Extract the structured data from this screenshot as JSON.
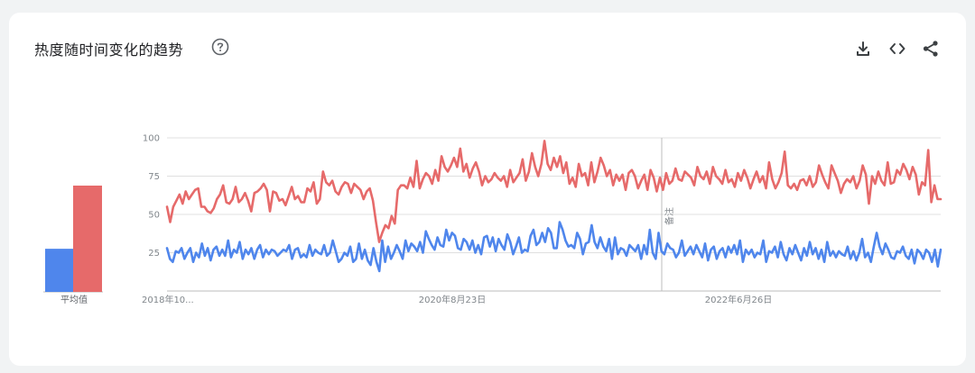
{
  "header": {
    "title": "热度随时间变化的趋势",
    "help_icon": "help-circle-icon",
    "actions": [
      {
        "name": "download-icon",
        "label": "download"
      },
      {
        "name": "embed-code-icon",
        "label": "embed"
      },
      {
        "name": "share-icon",
        "label": "share"
      }
    ]
  },
  "colors": {
    "series_blue": "#4f86ec",
    "series_red": "#e66a6a",
    "grid": "#e0e0e0",
    "axis": "#bdbdbd"
  },
  "chart_data": {
    "type": "line",
    "title": "",
    "xlabel": "",
    "ylabel": "",
    "ylim": [
      0,
      100
    ],
    "y_ticks": [
      25,
      50,
      75,
      100
    ],
    "x_tick_labels": [
      "2018年10...",
      "2020年8月23日",
      "2022年6月26日"
    ],
    "annotation_label": "备注",
    "average_label": "平均值",
    "averages": {
      "blue": 28,
      "red": 69
    },
    "x_range": [
      "2018-10",
      "2024-10"
    ],
    "series": [
      {
        "color": "#4f86ec",
        "values": [
          28,
          21,
          19,
          26,
          25,
          28,
          21,
          25,
          28,
          19,
          25,
          22,
          31,
          23,
          28,
          20,
          27,
          29,
          23,
          27,
          23,
          33,
          22,
          27,
          25,
          32,
          21,
          27,
          24,
          28,
          21,
          27,
          30,
          22,
          27,
          24,
          27,
          26,
          23,
          25,
          27,
          26,
          30,
          21,
          27,
          28,
          22,
          24,
          22,
          30,
          23,
          27,
          25,
          24,
          30,
          23,
          25,
          33,
          26,
          19,
          21,
          25,
          23,
          29,
          19,
          21,
          31,
          21,
          27,
          20,
          17,
          28,
          19,
          13,
          33,
          19,
          29,
          21,
          25,
          30,
          26,
          21,
          33,
          26,
          31,
          29,
          26,
          32,
          25,
          39,
          34,
          30,
          27,
          35,
          30,
          29,
          40,
          33,
          38,
          36,
          28,
          27,
          34,
          32,
          27,
          33,
          25,
          30,
          24,
          35,
          36,
          29,
          35,
          26,
          34,
          30,
          27,
          37,
          32,
          24,
          29,
          35,
          25,
          27,
          26,
          36,
          40,
          30,
          32,
          38,
          32,
          41,
          38,
          28,
          28,
          45,
          40,
          33,
          29,
          30,
          28,
          38,
          34,
          24,
          31,
          32,
          43,
          32,
          28,
          35,
          29,
          26,
          34,
          21,
          35,
          24,
          28,
          27,
          23,
          30,
          28,
          26,
          30,
          21,
          30,
          24,
          40,
          25,
          21,
          38,
          26,
          24,
          31,
          28,
          27,
          22,
          25,
          33,
          23,
          26,
          29,
          24,
          30,
          26,
          22,
          31,
          20,
          27,
          29,
          21,
          26,
          28,
          22,
          29,
          25,
          30,
          24,
          33,
          19,
          27,
          24,
          27,
          22,
          25,
          24,
          33,
          19,
          26,
          25,
          29,
          22,
          32,
          24,
          20,
          28,
          24,
          30,
          25,
          20,
          28,
          23,
          32,
          24,
          28,
          21,
          27,
          19,
          32,
          23,
          26,
          22,
          26,
          24,
          23,
          29,
          21,
          26,
          20,
          25,
          34,
          22,
          25,
          19,
          29,
          38,
          29,
          24,
          31,
          27,
          22,
          21,
          26,
          25,
          29,
          23,
          21,
          27,
          18,
          27,
          25,
          21,
          27,
          25,
          19,
          27,
          16,
          27
        ]
      },
      {
        "color": "#e66a6a",
        "values": [
          55,
          45,
          55,
          59,
          63,
          57,
          65,
          60,
          63,
          66,
          67,
          55,
          55,
          52,
          51,
          54,
          60,
          63,
          69,
          58,
          57,
          60,
          68,
          58,
          60,
          64,
          59,
          52,
          64,
          65,
          67,
          70,
          66,
          52,
          65,
          64,
          59,
          60,
          56,
          62,
          68,
          60,
          62,
          58,
          58,
          67,
          65,
          71,
          57,
          60,
          78,
          71,
          69,
          72,
          65,
          63,
          68,
          71,
          70,
          64,
          70,
          68,
          66,
          60,
          65,
          67,
          59,
          45,
          32,
          38,
          43,
          41,
          49,
          44,
          66,
          69,
          69,
          67,
          74,
          68,
          85,
          67,
          73,
          77,
          75,
          70,
          79,
          72,
          88,
          81,
          78,
          82,
          87,
          81,
          93,
          78,
          83,
          74,
          80,
          84,
          78,
          69,
          75,
          71,
          73,
          77,
          74,
          72,
          75,
          68,
          79,
          71,
          74,
          77,
          86,
          72,
          78,
          90,
          81,
          75,
          83,
          98,
          83,
          79,
          87,
          81,
          88,
          77,
          84,
          70,
          74,
          68,
          83,
          75,
          77,
          69,
          84,
          71,
          78,
          87,
          82,
          75,
          79,
          69,
          76,
          72,
          76,
          66,
          77,
          79,
          75,
          67,
          72,
          76,
          66,
          79,
          74,
          65,
          74,
          66,
          77,
          70,
          72,
          80,
          73,
          72,
          78,
          76,
          74,
          69,
          81,
          75,
          73,
          78,
          70,
          81,
          75,
          73,
          70,
          79,
          71,
          73,
          68,
          77,
          72,
          79,
          74,
          67,
          73,
          78,
          71,
          75,
          67,
          84,
          73,
          67,
          71,
          77,
          91,
          69,
          67,
          70,
          66,
          72,
          73,
          69,
          75,
          68,
          71,
          82,
          76,
          71,
          67,
          82,
          77,
          72,
          64,
          70,
          73,
          71,
          75,
          67,
          72,
          82,
          76,
          57,
          75,
          70,
          78,
          72,
          69,
          84,
          70,
          71,
          79,
          76,
          83,
          79,
          73,
          81,
          76,
          63,
          71,
          69,
          92,
          58,
          69,
          60,
          60
        ]
      }
    ]
  }
}
